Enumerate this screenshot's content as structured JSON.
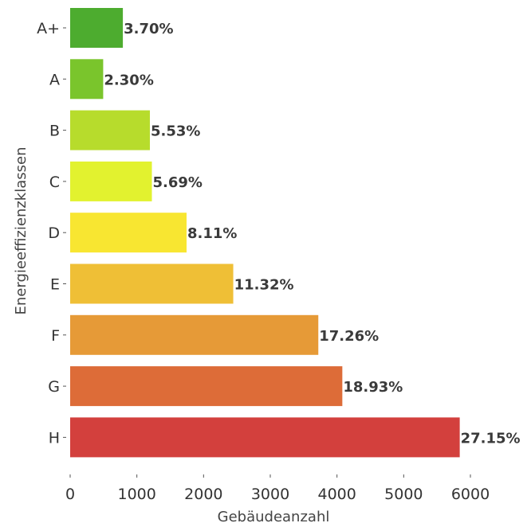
{
  "chart_data": {
    "type": "bar",
    "orientation": "horizontal",
    "categories": [
      "A+",
      "A",
      "B",
      "C",
      "D",
      "E",
      "F",
      "G",
      "H"
    ],
    "values": [
      790,
      495,
      1195,
      1225,
      1745,
      2445,
      3720,
      4080,
      5840
    ],
    "labels": [
      "3.70%",
      "2.30%",
      "5.53%",
      "5.69%",
      "8.11%",
      "11.32%",
      "17.26%",
      "18.93%",
      "27.15%"
    ],
    "colors": [
      "#4dac2f",
      "#7ac52c",
      "#b7dc2c",
      "#e2f22f",
      "#f8e631",
      "#efbf36",
      "#e69a37",
      "#dd6c38",
      "#d3403d"
    ],
    "xlabel": "Gebäudeanzahl",
    "ylabel": "Energieeffizienzklassen",
    "xticks": [
      0,
      1000,
      2000,
      3000,
      4000,
      5000,
      6000
    ],
    "xlim": [
      0,
      6000
    ],
    "grid": false,
    "legend": "none"
  }
}
